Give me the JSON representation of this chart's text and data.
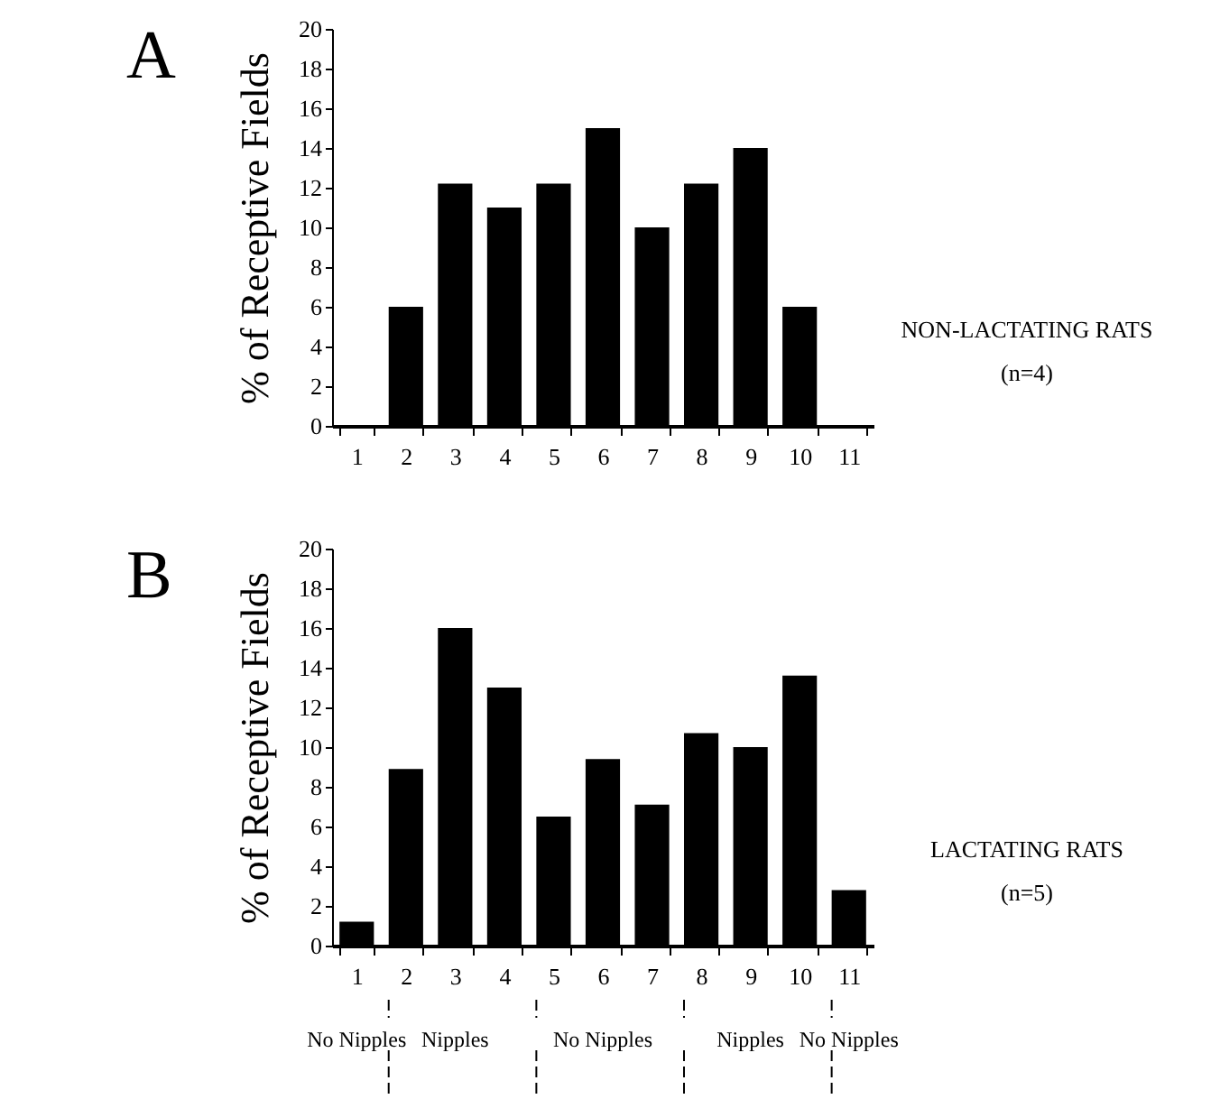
{
  "chart_data": [
    {
      "type": "bar",
      "title": "A",
      "ylabel": "% of Receptive Fields",
      "categories": [
        "1",
        "2",
        "3",
        "4",
        "5",
        "6",
        "7",
        "8",
        "9",
        "10",
        "11"
      ],
      "values": [
        0,
        6,
        12.2,
        11,
        12.2,
        15,
        10,
        12.2,
        14,
        6,
        0
      ],
      "color": "#000000",
      "ylim": [
        0,
        20
      ],
      "yticks": [
        0,
        2,
        4,
        6,
        8,
        10,
        12,
        14,
        16,
        18,
        20
      ],
      "annotations": [
        "NON-LACTATING RATS",
        "(n=4)"
      ]
    },
    {
      "type": "bar",
      "title": "B",
      "ylabel": "% of Receptive Fields",
      "categories": [
        "1",
        "2",
        "3",
        "4",
        "5",
        "6",
        "7",
        "8",
        "9",
        "10",
        "11"
      ],
      "values": [
        1.2,
        8.9,
        16,
        13,
        6.5,
        9.4,
        7.1,
        10.7,
        10,
        13.6,
        2.8
      ],
      "color": "#000000",
      "ylim": [
        0,
        20
      ],
      "yticks": [
        0,
        2,
        4,
        6,
        8,
        10,
        12,
        14,
        16,
        18,
        20
      ],
      "annotations": [
        "LACTATING RATS",
        "(n=5)",
        "No Nipples",
        "Nipples",
        "No Nipples",
        "Nipples",
        "No Nipples"
      ]
    }
  ]
}
